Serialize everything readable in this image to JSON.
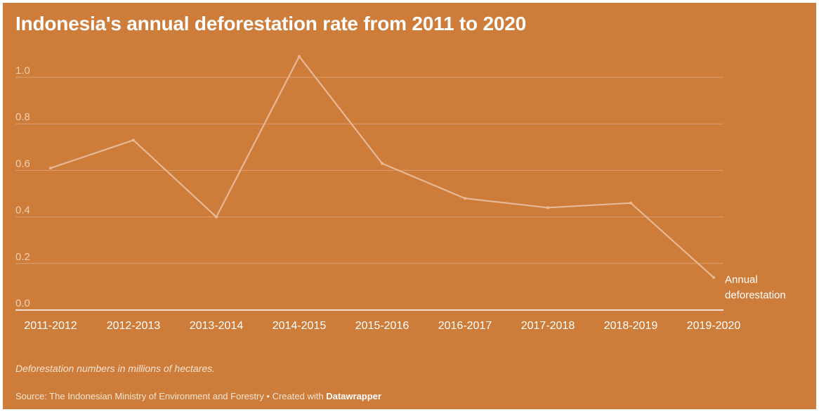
{
  "title": "Indonesia's annual deforestation rate from 2011 to 2020",
  "note": "Deforestation numbers in millions of hectares.",
  "source": {
    "text": "Source: The Indonesian Ministry of Environment and Forestry • Created with",
    "brand": "Datawrapper"
  },
  "colors": {
    "background": "#cd7c3a",
    "line": "#e6b895",
    "grid": "#dd9f72",
    "axis_text": "#f1cfb3",
    "tick_text": "#ffffff"
  },
  "chart_data": {
    "type": "line",
    "title": "Indonesia's annual deforestation rate from 2011 to 2020",
    "categories": [
      "2011-2012",
      "2012-2013",
      "2013-2014",
      "2014-2015",
      "2015-2016",
      "2016-2017",
      "2017-2018",
      "2018-2019",
      "2019-2020"
    ],
    "series": [
      {
        "name": "Annual deforestation",
        "label_lines": [
          "Annual",
          "deforestation"
        ],
        "values": [
          0.61,
          0.73,
          0.4,
          1.09,
          0.63,
          0.48,
          0.44,
          0.46,
          0.14
        ]
      }
    ],
    "ylim": [
      0,
      1.0
    ],
    "yticks": [
      "0.0",
      "0.2",
      "0.4",
      "0.6",
      "0.8",
      "1.0"
    ],
    "grid": true,
    "legend": "direct label at line end"
  }
}
